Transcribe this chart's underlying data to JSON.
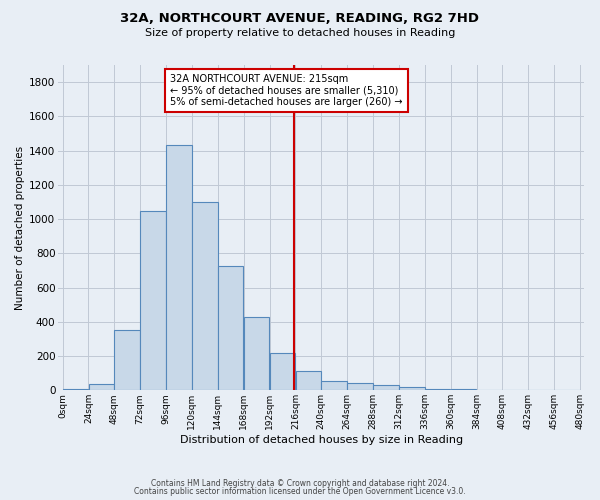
{
  "title": "32A, NORTHCOURT AVENUE, READING, RG2 7HD",
  "subtitle": "Size of property relative to detached houses in Reading",
  "xlabel": "Distribution of detached houses by size in Reading",
  "ylabel": "Number of detached properties",
  "bin_edges": [
    0,
    24,
    48,
    72,
    96,
    120,
    144,
    168,
    192,
    216,
    240,
    264,
    288,
    312,
    336,
    360,
    384,
    408,
    432,
    456,
    480
  ],
  "bar_heights": [
    10,
    35,
    350,
    1050,
    1430,
    1100,
    725,
    430,
    220,
    110,
    55,
    45,
    30,
    18,
    10,
    5,
    3,
    2,
    1,
    1
  ],
  "bar_color": "#c8d8e8",
  "bar_edge_color": "#5588bb",
  "vline_x": 215,
  "vline_color": "#cc0000",
  "ylim": [
    0,
    1900
  ],
  "yticks": [
    0,
    200,
    400,
    600,
    800,
    1000,
    1200,
    1400,
    1600,
    1800
  ],
  "annotation_title": "32A NORTHCOURT AVENUE: 215sqm",
  "annotation_line1": "← 95% of detached houses are smaller (5,310)",
  "annotation_line2": "5% of semi-detached houses are larger (260) →",
  "annotation_box_color": "#cc0000",
  "footer_line1": "Contains HM Land Registry data © Crown copyright and database right 2024.",
  "footer_line2": "Contains public sector information licensed under the Open Government Licence v3.0.",
  "bg_color": "#e8eef5",
  "plot_bg_color": "#e8eef5",
  "grid_color": "#c0c8d4"
}
